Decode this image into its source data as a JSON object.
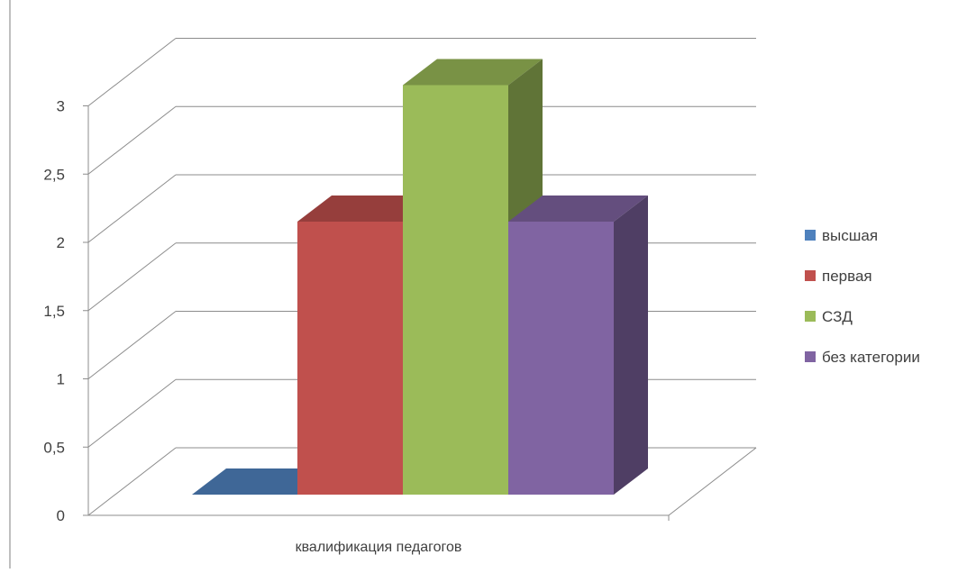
{
  "chart_data": {
    "type": "bar",
    "categories": [
      "квалификация педагогов"
    ],
    "series": [
      {
        "name": "высшая",
        "values": [
          0
        ],
        "color": "#4f81bd"
      },
      {
        "name": "первая",
        "values": [
          2
        ],
        "color": "#c0504d"
      },
      {
        "name": "СЗД",
        "values": [
          3
        ],
        "color": "#9bbb59"
      },
      {
        "name": "без категории",
        "values": [
          2
        ],
        "color": "#8064a2"
      }
    ],
    "ylim": [
      0,
      3
    ],
    "yticks": [
      "0",
      "0,5",
      "1",
      "1,5",
      "2",
      "2,5",
      "3"
    ],
    "ytick_values": [
      0,
      0.5,
      1,
      1.5,
      2,
      2.5,
      3
    ],
    "grid": true,
    "legend_position": "right",
    "three_d": true
  }
}
